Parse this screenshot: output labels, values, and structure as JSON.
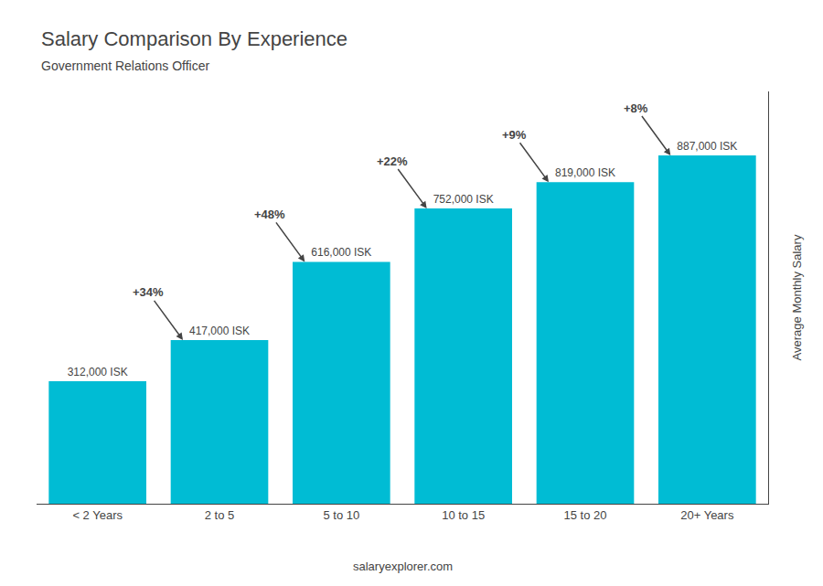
{
  "chart_data": {
    "type": "bar",
    "title": "Salary Comparison By Experience",
    "subtitle": "Government Relations Officer",
    "categories": [
      "< 2 Years",
      "2 to 5",
      "5 to 10",
      "10 to 15",
      "15 to 20",
      "20+ Years"
    ],
    "values": [
      312000,
      417000,
      616000,
      752000,
      819000,
      887000
    ],
    "value_labels": [
      "312,000 ISK",
      "417,000 ISK",
      "616,000 ISK",
      "752,000 ISK",
      "819,000 ISK",
      "887,000 ISK"
    ],
    "data_labels": true,
    "color": "#00bcd4",
    "ylabel": "Average Monthly Salary",
    "ylim": [
      0,
      1050000
    ],
    "tick_labels": "x",
    "grid": false,
    "annotations": [
      {
        "category": "2 to 5",
        "text": "+34%"
      },
      {
        "category": "5 to 10",
        "text": "+48%"
      },
      {
        "category": "10 to 15",
        "text": "+22%"
      },
      {
        "category": "15 to 20",
        "text": "+9%"
      },
      {
        "category": "20+ Years",
        "text": "+8%"
      }
    ],
    "watermark": "salaryexplorer.com"
  }
}
